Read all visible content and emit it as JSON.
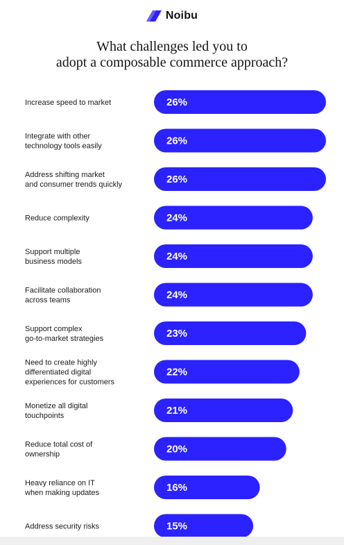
{
  "brand": {
    "name": "Noibu",
    "logo_icon": "noibu-logo-icon",
    "logo_color": "#2b22ff"
  },
  "title": {
    "line1": "What challenges led you to",
    "line2": "adopt a composable commerce approach?"
  },
  "chart_data": {
    "type": "bar",
    "orientation": "horizontal",
    "title": "What challenges led you to adopt a composable commerce approach?",
    "categories": [
      [
        "Increase speed to market"
      ],
      [
        "Integrate with other",
        "technology tools easily"
      ],
      [
        "Address shifting market",
        "and consumer trends quickly"
      ],
      [
        "Reduce complexity"
      ],
      [
        "Support multiple",
        "business models"
      ],
      [
        "Facilitate collaboration",
        "across teams"
      ],
      [
        "Support complex",
        "go-to-market strategies"
      ],
      [
        "Need to create highly",
        "differentiated digital",
        "experiences for customers"
      ],
      [
        "Monetize all digital",
        "touchpoints"
      ],
      [
        "Reduce total cost of",
        "ownership"
      ],
      [
        "Heavy reliance on IT",
        "when making updates"
      ],
      [
        "Address security risks"
      ]
    ],
    "values": [
      26,
      26,
      26,
      24,
      24,
      24,
      23,
      22,
      21,
      20,
      16,
      15
    ],
    "value_labels": [
      "26%",
      "26%",
      "26%",
      "24%",
      "24%",
      "24%",
      "23%",
      "22%",
      "21%",
      "20%",
      "16%",
      "15%"
    ],
    "unit": "%",
    "bar_color": "#2b22ff",
    "label_color": "#ffffff",
    "grid": false,
    "legend": "none"
  }
}
